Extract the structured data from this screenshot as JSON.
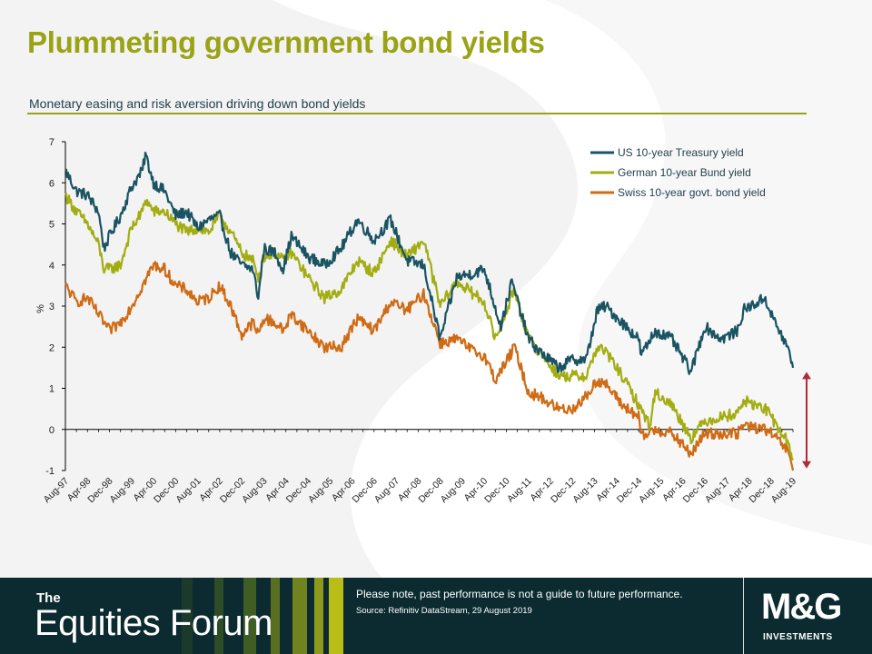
{
  "header": {
    "title": "Plummeting government bond yields",
    "subtitle": "Monetary easing and risk aversion driving down bond yields"
  },
  "colors": {
    "title": "#9aa316",
    "us": "#1a5463",
    "german": "#a3ad12",
    "swiss": "#cf6b14",
    "arrow": "#b12a3a",
    "footer_bg": "#0c2b30"
  },
  "chart_data": {
    "type": "line",
    "ylabel": "%",
    "ylim": [
      -1,
      7
    ],
    "yticks": [
      "7",
      "6",
      "5",
      "4",
      "3",
      "2",
      "1",
      "0",
      "-1"
    ],
    "x_tick_labels": [
      "Aug-97",
      "Apr-98",
      "Dec-98",
      "Aug-99",
      "Apr-00",
      "Dec-00",
      "Aug-01",
      "Apr-02",
      "Dec-02",
      "Aug-03",
      "Apr-04",
      "Dec-04",
      "Aug-05",
      "Apr-06",
      "Dec-06",
      "Aug-07",
      "Apr-08",
      "Dec-08",
      "Aug-09",
      "Apr-10",
      "Dec-10",
      "Aug-11",
      "Apr-12",
      "Dec-12",
      "Aug-13",
      "Apr-14",
      "Dec-14",
      "Aug-15",
      "Apr-16",
      "Dec-16",
      "Aug-17",
      "Apr-18",
      "Dec-18",
      "Aug-19"
    ],
    "legend_position": "top-right",
    "grid": false,
    "annotation": "double-headed arrow spanning roughly 1.4% down to -1% near Aug-19",
    "series": [
      {
        "name": "US 10-year Treasury yield",
        "color": "#1a5463",
        "points": [
          [
            "1997-08",
            6.3
          ],
          [
            "1997-12",
            5.8
          ],
          [
            "1998-04",
            5.7
          ],
          [
            "1998-08",
            5.3
          ],
          [
            "1998-10",
            4.4
          ],
          [
            "1998-12",
            4.7
          ],
          [
            "1999-04",
            5.2
          ],
          [
            "1999-08",
            5.9
          ],
          [
            "1999-12",
            6.3
          ],
          [
            "2000-01",
            6.7
          ],
          [
            "2000-04",
            6.0
          ],
          [
            "2000-08",
            5.8
          ],
          [
            "2000-12",
            5.2
          ],
          [
            "2001-04",
            5.3
          ],
          [
            "2001-08",
            4.9
          ],
          [
            "2001-12",
            5.1
          ],
          [
            "2002-04",
            5.2
          ],
          [
            "2002-08",
            4.3
          ],
          [
            "2002-12",
            4.0
          ],
          [
            "2003-04",
            3.9
          ],
          [
            "2003-06",
            3.2
          ],
          [
            "2003-08",
            4.4
          ],
          [
            "2003-12",
            4.3
          ],
          [
            "2004-03",
            3.9
          ],
          [
            "2004-06",
            4.7
          ],
          [
            "2004-12",
            4.2
          ],
          [
            "2005-06",
            4.0
          ],
          [
            "2005-12",
            4.4
          ],
          [
            "2006-06",
            5.1
          ],
          [
            "2006-12",
            4.6
          ],
          [
            "2007-06",
            5.1
          ],
          [
            "2007-12",
            4.1
          ],
          [
            "2008-06",
            4.0
          ],
          [
            "2008-12",
            2.2
          ],
          [
            "2009-06",
            3.7
          ],
          [
            "2009-12",
            3.8
          ],
          [
            "2010-04",
            3.9
          ],
          [
            "2010-10",
            2.5
          ],
          [
            "2011-02",
            3.6
          ],
          [
            "2011-08",
            2.2
          ],
          [
            "2011-12",
            1.9
          ],
          [
            "2012-07",
            1.5
          ],
          [
            "2012-12",
            1.7
          ],
          [
            "2013-05",
            1.7
          ],
          [
            "2013-09",
            2.9
          ],
          [
            "2013-12",
            3.0
          ],
          [
            "2014-06",
            2.6
          ],
          [
            "2014-12",
            2.2
          ],
          [
            "2015-01",
            1.8
          ],
          [
            "2015-06",
            2.4
          ],
          [
            "2015-12",
            2.2
          ],
          [
            "2016-07",
            1.4
          ],
          [
            "2016-12",
            2.5
          ],
          [
            "2017-06",
            2.2
          ],
          [
            "2017-12",
            2.4
          ],
          [
            "2018-02",
            2.9
          ],
          [
            "2018-10",
            3.2
          ],
          [
            "2018-12",
            2.8
          ],
          [
            "2019-06",
            2.0
          ],
          [
            "2019-08",
            1.5
          ]
        ]
      },
      {
        "name": "German 10-year Bund yield",
        "color": "#a3ad12",
        "points": [
          [
            "1997-08",
            5.7
          ],
          [
            "1997-12",
            5.3
          ],
          [
            "1998-04",
            5.0
          ],
          [
            "1998-08",
            4.5
          ],
          [
            "1998-10",
            3.9
          ],
          [
            "1998-12",
            3.9
          ],
          [
            "1999-04",
            4.0
          ],
          [
            "1999-08",
            4.9
          ],
          [
            "1999-12",
            5.3
          ],
          [
            "2000-01",
            5.6
          ],
          [
            "2000-04",
            5.3
          ],
          [
            "2000-08",
            5.3
          ],
          [
            "2000-12",
            5.0
          ],
          [
            "2001-04",
            4.8
          ],
          [
            "2001-08",
            4.9
          ],
          [
            "2001-12",
            4.8
          ],
          [
            "2002-04",
            5.2
          ],
          [
            "2002-08",
            4.8
          ],
          [
            "2002-12",
            4.3
          ],
          [
            "2003-04",
            4.1
          ],
          [
            "2003-06",
            3.7
          ],
          [
            "2003-08",
            4.2
          ],
          [
            "2003-12",
            4.3
          ],
          [
            "2004-03",
            4.1
          ],
          [
            "2004-06",
            4.3
          ],
          [
            "2004-12",
            3.7
          ],
          [
            "2005-06",
            3.2
          ],
          [
            "2005-12",
            3.4
          ],
          [
            "2006-06",
            4.1
          ],
          [
            "2006-12",
            3.8
          ],
          [
            "2007-06",
            4.6
          ],
          [
            "2007-12",
            4.2
          ],
          [
            "2008-06",
            4.6
          ],
          [
            "2008-12",
            3.0
          ],
          [
            "2009-06",
            3.6
          ],
          [
            "2009-12",
            3.3
          ],
          [
            "2010-04",
            3.1
          ],
          [
            "2010-08",
            2.2
          ],
          [
            "2011-03",
            3.4
          ],
          [
            "2011-08",
            2.2
          ],
          [
            "2011-12",
            1.9
          ],
          [
            "2012-07",
            1.3
          ],
          [
            "2012-12",
            1.3
          ],
          [
            "2013-05",
            1.3
          ],
          [
            "2013-09",
            2.0
          ],
          [
            "2013-12",
            1.9
          ],
          [
            "2014-06",
            1.3
          ],
          [
            "2014-12",
            0.6
          ],
          [
            "2015-04",
            0.1
          ],
          [
            "2015-06",
            0.9
          ],
          [
            "2015-12",
            0.6
          ],
          [
            "2016-07",
            -0.2
          ],
          [
            "2016-12",
            0.2
          ],
          [
            "2017-06",
            0.3
          ],
          [
            "2017-12",
            0.4
          ],
          [
            "2018-02",
            0.7
          ],
          [
            "2018-10",
            0.5
          ],
          [
            "2018-12",
            0.3
          ],
          [
            "2019-06",
            -0.3
          ],
          [
            "2019-08",
            -0.7
          ]
        ]
      },
      {
        "name": "Swiss 10-year govt. bond yield",
        "color": "#cf6b14",
        "points": [
          [
            "1997-08",
            3.5
          ],
          [
            "1997-12",
            3.1
          ],
          [
            "1998-04",
            3.2
          ],
          [
            "1998-08",
            2.8
          ],
          [
            "1998-12",
            2.4
          ],
          [
            "1999-04",
            2.6
          ],
          [
            "1999-08",
            3.0
          ],
          [
            "1999-12",
            3.5
          ],
          [
            "2000-04",
            4.0
          ],
          [
            "2000-08",
            3.9
          ],
          [
            "2000-12",
            3.5
          ],
          [
            "2001-04",
            3.4
          ],
          [
            "2001-08",
            3.1
          ],
          [
            "2001-12",
            3.2
          ],
          [
            "2002-04",
            3.5
          ],
          [
            "2002-08",
            3.0
          ],
          [
            "2002-12",
            2.3
          ],
          [
            "2003-04",
            2.6
          ],
          [
            "2003-06",
            2.3
          ],
          [
            "2003-08",
            2.7
          ],
          [
            "2003-12",
            2.6
          ],
          [
            "2004-03",
            2.4
          ],
          [
            "2004-06",
            2.8
          ],
          [
            "2004-12",
            2.4
          ],
          [
            "2005-06",
            2.0
          ],
          [
            "2005-12",
            2.0
          ],
          [
            "2006-06",
            2.7
          ],
          [
            "2006-12",
            2.4
          ],
          [
            "2007-06",
            3.1
          ],
          [
            "2007-12",
            2.9
          ],
          [
            "2008-06",
            3.3
          ],
          [
            "2008-12",
            2.1
          ],
          [
            "2009-06",
            2.2
          ],
          [
            "2009-12",
            1.9
          ],
          [
            "2010-04",
            1.8
          ],
          [
            "2010-08",
            1.2
          ],
          [
            "2011-03",
            2.0
          ],
          [
            "2011-08",
            0.9
          ],
          [
            "2011-12",
            0.8
          ],
          [
            "2012-07",
            0.5
          ],
          [
            "2012-12",
            0.5
          ],
          [
            "2013-05",
            0.8
          ],
          [
            "2013-09",
            1.2
          ],
          [
            "2013-12",
            1.1
          ],
          [
            "2014-06",
            0.6
          ],
          [
            "2014-12",
            0.3
          ],
          [
            "2015-01",
            -0.2
          ],
          [
            "2015-06",
            0.0
          ],
          [
            "2015-12",
            -0.1
          ],
          [
            "2016-07",
            -0.6
          ],
          [
            "2016-12",
            -0.1
          ],
          [
            "2017-06",
            -0.1
          ],
          [
            "2017-12",
            -0.1
          ],
          [
            "2018-02",
            0.1
          ],
          [
            "2018-10",
            0.0
          ],
          [
            "2018-12",
            -0.1
          ],
          [
            "2019-06",
            -0.5
          ],
          [
            "2019-08",
            -1.0
          ]
        ]
      }
    ]
  },
  "footer": {
    "brand_the": "The",
    "brand_name": "Equities Forum",
    "disclaimer": "Please note, past performance  is not a guide to future performance.",
    "source": "Source: Refinitiv DataStream, 29 August 2019",
    "logo_main": "M&G",
    "logo_sub": "INVESTMENTS"
  }
}
